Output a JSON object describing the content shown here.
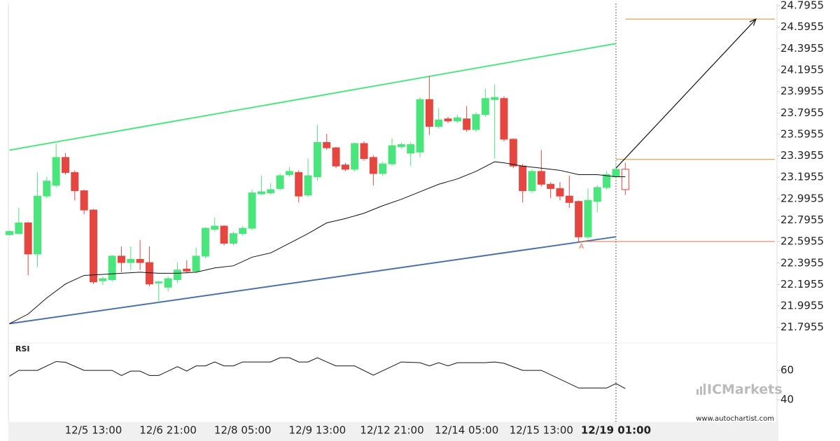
{
  "chart_data": {
    "type": "candlestick",
    "categories": [
      null,
      null,
      null,
      null,
      null,
      null,
      null,
      null,
      null,
      "12/5 13:00",
      null,
      null,
      null,
      null,
      null,
      null,
      null,
      "12/6 21:00",
      null,
      null,
      null,
      null,
      null,
      null,
      null,
      "12/8 05:00",
      null,
      null,
      null,
      null,
      null,
      null,
      null,
      "12/9 13:00",
      null,
      null,
      null,
      null,
      null,
      null,
      null,
      "12/12 21:00",
      null,
      null,
      null,
      null,
      null,
      null,
      null,
      "12/14 05:00",
      null,
      null,
      null,
      null,
      null,
      null,
      null,
      "12/15 13:00",
      null,
      null,
      null,
      null,
      null,
      null,
      null,
      "12/19 01:00",
      null
    ],
    "open": [
      22.66,
      22.67,
      22.77,
      22.48,
      23.02,
      23.12,
      23.38,
      23.24,
      23.07,
      22.89,
      22.23,
      22.24,
      22.46,
      22.4,
      22.43,
      22.4,
      22.21,
      22.17,
      22.24,
      22.34,
      22.32,
      22.46,
      22.71,
      22.74,
      22.58,
      22.67,
      22.72,
      23.04,
      23.05,
      23.09,
      23.22,
      23.24,
      23.03,
      23.2,
      23.52,
      23.47,
      23.31,
      23.27,
      23.51,
      23.38,
      23.23,
      23.32,
      23.48,
      23.42,
      23.43,
      23.92,
      23.67,
      23.74,
      23.72,
      23.74,
      23.64,
      23.78,
      23.92,
      23.93,
      23.55,
      23.3,
      23.07,
      23.25,
      23.13,
      23.09,
      23.02,
      22.97,
      22.64,
      22.97,
      23.1,
      23.2,
      23.27
    ],
    "high": [
      22.7,
      22.91,
      22.78,
      23.24,
      23.2,
      23.51,
      23.42,
      23.26,
      23.08,
      22.9,
      22.27,
      22.47,
      22.55,
      22.55,
      22.61,
      22.55,
      22.23,
      22.27,
      22.4,
      22.42,
      22.54,
      22.73,
      22.82,
      22.75,
      22.69,
      22.74,
      23.08,
      23.21,
      23.14,
      23.23,
      23.29,
      23.26,
      23.37,
      23.68,
      23.6,
      23.48,
      23.33,
      23.52,
      23.53,
      23.4,
      23.34,
      23.56,
      23.52,
      23.52,
      23.94,
      24.14,
      23.84,
      23.76,
      23.78,
      23.86,
      23.8,
      24.02,
      24.06,
      23.95,
      23.56,
      23.32,
      23.27,
      23.45,
      23.15,
      23.15,
      23.21,
      22.98,
      23.09,
      23.12,
      23.25,
      23.32,
      23.33
    ],
    "low": [
      22.65,
      22.66,
      22.28,
      22.36,
      23.0,
      23.1,
      23.22,
      22.98,
      22.85,
      22.2,
      22.19,
      22.22,
      22.31,
      22.33,
      22.33,
      22.18,
      22.03,
      22.13,
      22.21,
      22.3,
      22.3,
      22.44,
      22.69,
      22.56,
      22.56,
      22.65,
      22.7,
      23.03,
      23.03,
      23.07,
      23.2,
      22.96,
      23.01,
      23.16,
      23.45,
      23.28,
      23.25,
      23.25,
      23.35,
      23.12,
      23.21,
      23.3,
      23.46,
      23.3,
      23.38,
      23.59,
      23.65,
      23.7,
      23.7,
      23.62,
      23.62,
      23.76,
      23.37,
      23.53,
      23.28,
      22.96,
      23.05,
      23.11,
      23.0,
      22.98,
      22.91,
      22.59,
      22.62,
      22.87,
      23.08,
      23.18,
      23.03
    ],
    "close": [
      22.69,
      22.77,
      22.48,
      23.02,
      23.16,
      23.38,
      23.24,
      23.07,
      22.89,
      22.22,
      22.25,
      22.46,
      22.4,
      22.43,
      22.4,
      22.2,
      22.22,
      22.25,
      22.33,
      22.32,
      22.46,
      22.72,
      22.74,
      22.58,
      22.67,
      22.72,
      23.05,
      23.06,
      23.08,
      23.21,
      23.25,
      23.02,
      23.21,
      23.52,
      23.47,
      23.3,
      23.27,
      23.51,
      23.37,
      23.23,
      23.32,
      23.49,
      23.5,
      23.5,
      23.92,
      23.67,
      23.73,
      23.72,
      23.75,
      23.64,
      23.78,
      23.93,
      23.94,
      23.55,
      23.3,
      23.07,
      23.25,
      23.13,
      23.09,
      23.02,
      22.96,
      22.64,
      22.98,
      23.1,
      23.22,
      23.27,
      23.08
    ],
    "up_color": "#4ae57c",
    "down_color": "#e5463f",
    "ylim": [
      21.65,
      24.8155
    ],
    "yticks": [
      24.7955,
      24.5955,
      24.3955,
      24.1955,
      23.9955,
      23.7955,
      23.5955,
      23.3955,
      23.1955,
      22.9955,
      22.7955,
      22.5955,
      22.3955,
      22.1955,
      21.9955,
      21.7955
    ],
    "current_index": 65,
    "moving_average": {
      "color": "#111111",
      "x": [
        0,
        2,
        4,
        6,
        8,
        10,
        12,
        14,
        16,
        18,
        20,
        22,
        24,
        26,
        28,
        30,
        32,
        34,
        36,
        38,
        40,
        42,
        44,
        46,
        48,
        50,
        52,
        53,
        55,
        57,
        59,
        61,
        63,
        65,
        66
      ],
      "values": [
        21.83,
        21.92,
        22.07,
        22.2,
        22.28,
        22.29,
        22.3,
        22.31,
        22.3,
        22.3,
        22.31,
        22.35,
        22.37,
        22.45,
        22.49,
        22.58,
        22.67,
        22.77,
        22.81,
        22.86,
        22.93,
        22.99,
        23.06,
        23.13,
        23.18,
        23.25,
        23.34,
        23.33,
        23.3,
        23.28,
        23.26,
        23.22,
        23.22,
        23.2,
        23.2
      ]
    },
    "annotations": {
      "resistance": {
        "color": "#4fe67f",
        "x": [
          0,
          65
        ],
        "values": [
          23.448,
          24.442
        ]
      },
      "support": {
        "color": "#4a72a8",
        "x": [
          0,
          65
        ],
        "values": [
          21.83,
          22.64
        ]
      },
      "levels": [
        {
          "value": 24.67,
          "x_start": 66,
          "color": "#d98c3a"
        },
        {
          "value": 23.362,
          "x_start": 65,
          "color": "#d98c3a"
        },
        {
          "value": 22.596,
          "x_start": 61,
          "color": "#e07050"
        }
      ],
      "arrow": {
        "x": [
          65,
          80
        ],
        "values": [
          23.28,
          24.67
        ]
      },
      "point_label": {
        "text": "A",
        "x": 61,
        "value": 22.55
      }
    },
    "rsi": {
      "label": "RSI",
      "color": "#111111",
      "ylim": [
        24.8,
        78.6
      ],
      "yticks": [
        60,
        40
      ],
      "x": [
        0,
        1,
        3,
        5,
        6,
        8,
        11,
        12,
        13,
        14,
        15,
        16,
        18,
        19,
        20,
        21,
        22,
        23,
        24,
        25,
        28,
        29,
        30,
        31,
        32,
        33,
        34,
        35,
        37,
        39,
        42,
        44,
        45,
        46,
        47,
        48,
        51,
        52,
        53,
        55,
        57,
        61,
        64,
        65,
        66
      ],
      "values": [
        56,
        60,
        60,
        66,
        65.5,
        60,
        60,
        56.5,
        59.5,
        59.5,
        56.5,
        56.5,
        62.5,
        59.5,
        63,
        63,
        65.7,
        63,
        63,
        65.7,
        65.7,
        68.6,
        68.6,
        65.7,
        65.7,
        68.6,
        65.7,
        63,
        63,
        56.7,
        65.7,
        65.2,
        63,
        65.2,
        63,
        65.2,
        65.2,
        65.7,
        64.8,
        60,
        60,
        48,
        48,
        51,
        47.6
      ]
    },
    "watermark": "ICMarkets",
    "source": "www.autochartist.com"
  }
}
